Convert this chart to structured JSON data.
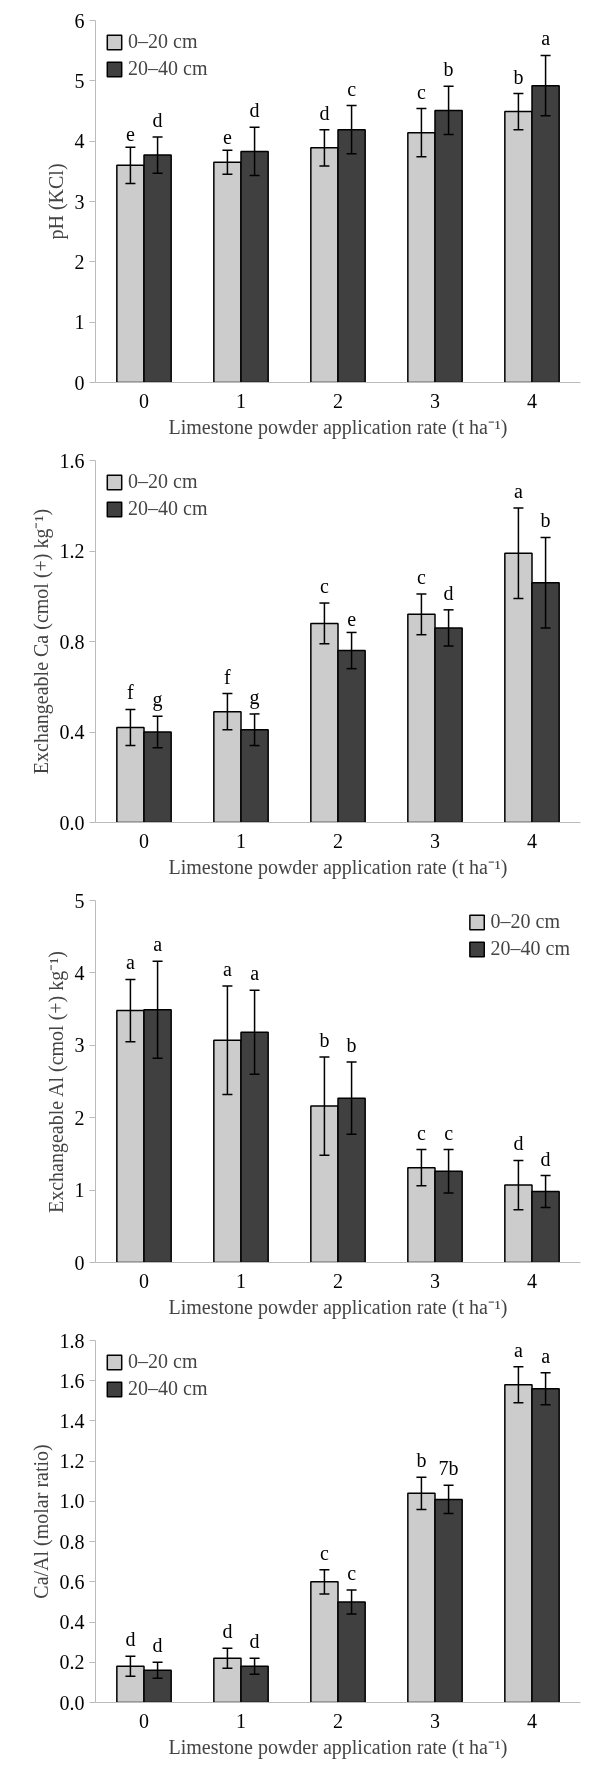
{
  "chart_data": [
    {
      "type": "bar",
      "xlabel": "Limestone powder application rate (t ha⁻¹)",
      "ylabel": "pH (KCl)",
      "categories": [
        "0",
        "1",
        "2",
        "3",
        "4"
      ],
      "ylim": [
        0,
        6
      ],
      "yticks": [
        0,
        1,
        2,
        3,
        4,
        5,
        6
      ],
      "grid": false,
      "legend": "top left",
      "series": [
        {
          "name": "0–20 cm",
          "color": "#cccccc",
          "values": [
            3.6,
            3.65,
            3.89,
            4.14,
            4.49
          ],
          "errors": [
            0.3,
            0.2,
            0.3,
            0.4,
            0.3
          ]
        },
        {
          "name": "20–40 cm",
          "color": "#404040",
          "values": [
            3.77,
            3.83,
            4.19,
            4.51,
            4.92
          ],
          "errors": [
            0.3,
            0.4,
            0.4,
            0.4,
            0.5
          ]
        }
      ],
      "annotations": [
        "e",
        "d",
        "e",
        "d",
        "d",
        "c",
        "c",
        "b",
        "b",
        "a"
      ]
    },
    {
      "type": "bar",
      "xlabel": "Limestone powder application rate (t ha⁻¹)",
      "ylabel": "Exchangeable Ca (cmol (+) kg⁻¹)",
      "categories": [
        "0",
        "1",
        "2",
        "3",
        "4"
      ],
      "ylim": [
        0,
        1.6
      ],
      "yticks": [
        {
          "value": 0,
          "label": "0.0"
        },
        {
          "value": 0.4,
          "label": "0.4"
        },
        {
          "value": 0.8,
          "label": "0.8"
        },
        {
          "value": 1.2,
          "label": "1.2"
        },
        {
          "value": 1.6,
          "label": "1.6"
        }
      ],
      "grid": false,
      "legend": "top left",
      "series": [
        {
          "name": "0–20 cm",
          "color": "#cccccc",
          "values": [
            0.42,
            0.49,
            0.88,
            0.92,
            1.19
          ],
          "errors": [
            0.08,
            0.08,
            0.09,
            0.09,
            0.2
          ]
        },
        {
          "name": "20–40 cm",
          "color": "#404040",
          "values": [
            0.4,
            0.41,
            0.76,
            0.86,
            1.06
          ],
          "errors": [
            0.07,
            0.07,
            0.08,
            0.08,
            0.2
          ]
        }
      ],
      "annotations": [
        "f",
        "g",
        "f",
        "g",
        "c",
        "e",
        "c",
        "d",
        "a",
        "b"
      ]
    },
    {
      "type": "bar",
      "xlabel": "Limestone powder application rate (t ha⁻¹)",
      "ylabel": "Exchangeable Al (cmol (+) kg⁻¹)",
      "categories": [
        "0",
        "1",
        "2",
        "3",
        "4"
      ],
      "ylim": [
        0,
        5
      ],
      "yticks": [
        0,
        1,
        2,
        3,
        4,
        5
      ],
      "grid": false,
      "legend": "top right",
      "series": [
        {
          "name": "0–20 cm",
          "color": "#cccccc",
          "values": [
            3.48,
            3.07,
            2.16,
            1.31,
            1.07
          ],
          "errors": [
            0.43,
            0.75,
            0.68,
            0.25,
            0.34
          ]
        },
        {
          "name": "20–40 cm",
          "color": "#404040",
          "values": [
            3.49,
            3.18,
            2.27,
            1.26,
            0.98
          ],
          "errors": [
            0.67,
            0.58,
            0.5,
            0.3,
            0.22
          ]
        }
      ],
      "annotations": [
        "a",
        "a",
        "a",
        "a",
        "b",
        "b",
        "c",
        "c",
        "d",
        "d"
      ]
    },
    {
      "type": "bar",
      "xlabel": "Limestone powder application rate (t ha⁻¹)",
      "ylabel": "Ca/Al (molar ratio)",
      "categories": [
        "0",
        "1",
        "2",
        "3",
        "4"
      ],
      "ylim": [
        0,
        1.8
      ],
      "yticks": [
        {
          "value": 0,
          "label": "0.0"
        },
        {
          "value": 0.2,
          "label": "0.2"
        },
        {
          "value": 0.4,
          "label": "0.4"
        },
        {
          "value": 0.6,
          "label": "0.6"
        },
        {
          "value": 0.8,
          "label": "0.8"
        },
        {
          "value": 1.0,
          "label": "1.0"
        },
        {
          "value": 1.2,
          "label": "1.2"
        },
        {
          "value": 1.4,
          "label": "1.4"
        },
        {
          "value": 1.6,
          "label": "1.6"
        },
        {
          "value": 1.8,
          "label": "1.8"
        }
      ],
      "grid": false,
      "legend": "top left",
      "series": [
        {
          "name": "0–20 cm",
          "color": "#cccccc",
          "values": [
            0.18,
            0.22,
            0.6,
            1.04,
            1.58
          ],
          "errors": [
            0.05,
            0.05,
            0.06,
            0.08,
            0.09
          ]
        },
        {
          "name": "20–40 cm",
          "color": "#404040",
          "values": [
            0.16,
            0.18,
            0.5,
            1.01,
            1.56
          ],
          "errors": [
            0.04,
            0.04,
            0.06,
            0.07,
            0.08
          ]
        }
      ],
      "annotations": [
        "d",
        "d",
        "d",
        "d",
        "c",
        "c",
        "b",
        "7b",
        "a",
        "a"
      ]
    }
  ]
}
